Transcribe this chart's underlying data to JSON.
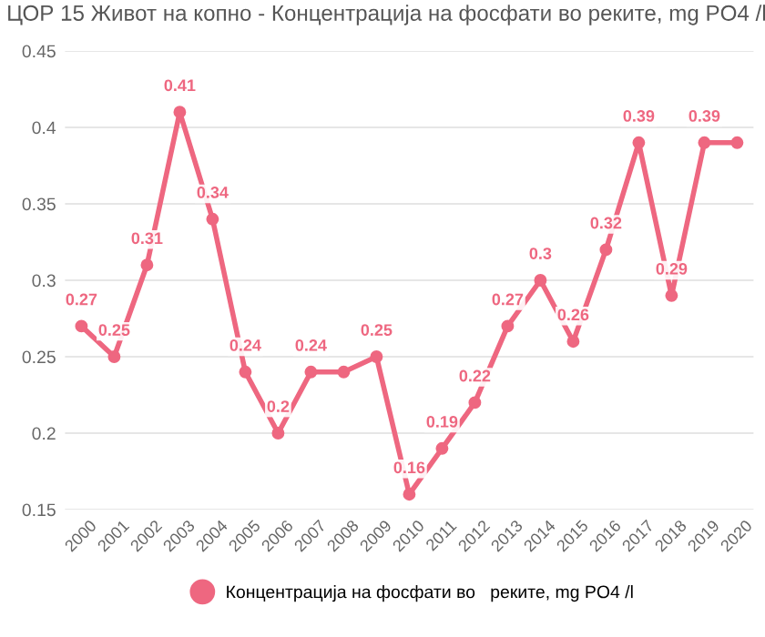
{
  "chart_data": {
    "type": "line",
    "title": "ЦОР 15 Живот на копно - Концентрација на фосфати во реките, mg PO4 /l",
    "categories": [
      "2000",
      "2001",
      "2002",
      "2003",
      "2004",
      "2005",
      "2006",
      "2007",
      "2008",
      "2009",
      "2010",
      "2011",
      "2012",
      "2013",
      "2014",
      "2015",
      "2016",
      "2017",
      "2018",
      "2019",
      "2020"
    ],
    "series": [
      {
        "name": "Концентрација на фосфати во   реките, mg PO4 /l",
        "color": "#ee6780",
        "values": [
          0.27,
          0.25,
          0.31,
          0.41,
          0.34,
          0.24,
          0.2,
          0.24,
          0.24,
          0.25,
          0.16,
          0.19,
          0.22,
          0.27,
          0.3,
          0.26,
          0.32,
          0.39,
          0.29,
          0.39,
          0.39
        ],
        "value_labels": [
          "0.27",
          "0.25",
          "0.31",
          "0.41",
          "0.34",
          "0.24",
          "0.2",
          "0.24",
          null,
          "0.25",
          "0.16",
          "0.19",
          "0.22",
          "0.27",
          "0.3",
          "0.26",
          "0.32",
          "0.39",
          "0.29",
          "0.39",
          null
        ]
      }
    ],
    "ylim": [
      0.15,
      0.45
    ],
    "yticks": [
      0.15,
      0.2,
      0.25,
      0.3,
      0.35,
      0.4,
      0.45
    ],
    "grid": "y",
    "legend": "bottom",
    "marker": "circle",
    "line_style": "solid"
  }
}
